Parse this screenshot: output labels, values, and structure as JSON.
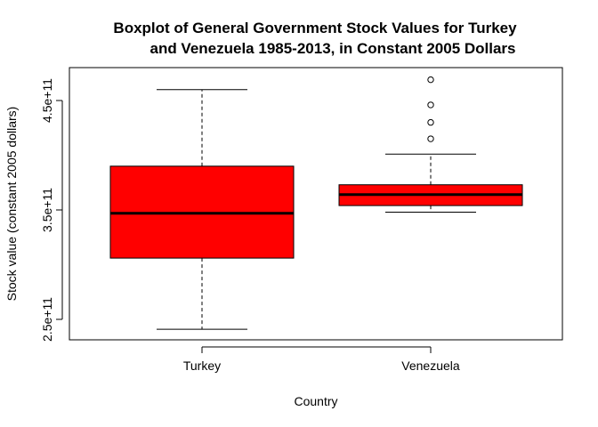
{
  "chart_data": {
    "type": "boxplot",
    "title_lines": [
      "Boxplot of General Government Stock Values for Turkey",
      "and Venezuela 1985-2013, in Constant 2005 Dollars"
    ],
    "xlabel": "Country",
    "ylabel": "Stock value (constant 2005 dollars)",
    "ylim": [
      240000000000.0,
      480000000000.0
    ],
    "y_ticks": [
      250000000000.0,
      350000000000.0,
      450000000000.0
    ],
    "y_tick_labels": [
      "2.5e+11",
      "3.5e+11",
      "4.5e+11"
    ],
    "categories": [
      "Turkey",
      "Venezuela"
    ],
    "boxes": [
      {
        "category": "Turkey",
        "whisker_low": 241000000000.0,
        "q1": 306000000000.0,
        "median": 347000000000.0,
        "q3": 390000000000.0,
        "whisker_high": 460000000000.0,
        "outliers": []
      },
      {
        "category": "Venezuela",
        "whisker_low": 348000000000.0,
        "q1": 354000000000.0,
        "median": 364000000000.0,
        "q3": 373000000000.0,
        "whisker_high": 401000000000.0,
        "outliers": [
          415000000000.0,
          430000000000.0,
          446000000000.0,
          469000000000.0
        ]
      }
    ],
    "colors": {
      "box_fill": "#ff0000",
      "line": "#000000"
    },
    "grid": false,
    "legend": "none"
  }
}
